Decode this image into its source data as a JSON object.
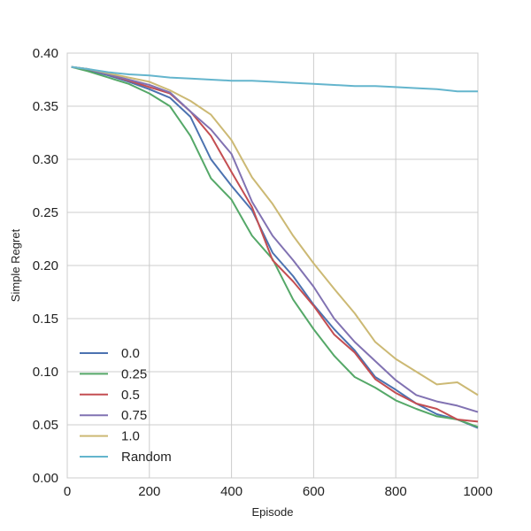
{
  "chart_data": {
    "type": "line",
    "title": "",
    "xlabel": "Episode",
    "ylabel": "Simple Regret",
    "xlim": [
      0,
      1000
    ],
    "ylim": [
      0,
      0.4
    ],
    "xticks": [
      0,
      200,
      400,
      600,
      800,
      1000
    ],
    "xtick_labels": [
      "0",
      "200",
      "400",
      "600",
      "800",
      "1000"
    ],
    "yticks": [
      0,
      0.05,
      0.1,
      0.15,
      0.2,
      0.25,
      0.3,
      0.35,
      0.4
    ],
    "ytick_labels": [
      "0.00",
      "0.05",
      "0.10",
      "0.15",
      "0.20",
      "0.25",
      "0.30",
      "0.35",
      "0.40"
    ],
    "grid": true,
    "legend_position": "lower-left",
    "x": [
      10,
      50,
      100,
      150,
      200,
      250,
      300,
      350,
      400,
      450,
      500,
      550,
      600,
      650,
      700,
      750,
      800,
      850,
      900,
      950,
      1000
    ],
    "series": [
      {
        "name": "0.0",
        "color": "#4C72B0",
        "values": [
          0.387,
          0.384,
          0.379,
          0.373,
          0.366,
          0.358,
          0.34,
          0.3,
          0.275,
          0.252,
          0.212,
          0.19,
          0.163,
          0.14,
          0.12,
          0.095,
          0.083,
          0.07,
          0.06,
          0.055,
          0.047
        ]
      },
      {
        "name": "0.25",
        "color": "#55A868",
        "values": [
          0.387,
          0.383,
          0.377,
          0.371,
          0.362,
          0.35,
          0.322,
          0.282,
          0.262,
          0.228,
          0.206,
          0.168,
          0.14,
          0.115,
          0.095,
          0.085,
          0.073,
          0.065,
          0.058,
          0.055,
          0.048
        ]
      },
      {
        "name": "0.5",
        "color": "#C44E52",
        "values": [
          0.387,
          0.385,
          0.38,
          0.374,
          0.368,
          0.362,
          0.345,
          0.322,
          0.288,
          0.255,
          0.205,
          0.185,
          0.162,
          0.135,
          0.118,
          0.093,
          0.08,
          0.07,
          0.065,
          0.055,
          0.053
        ]
      },
      {
        "name": "0.75",
        "color": "#8172B2",
        "values": [
          0.387,
          0.385,
          0.38,
          0.375,
          0.37,
          0.363,
          0.345,
          0.328,
          0.305,
          0.26,
          0.228,
          0.205,
          0.18,
          0.15,
          0.128,
          0.11,
          0.092,
          0.078,
          0.072,
          0.068,
          0.062
        ]
      },
      {
        "name": "1.0",
        "color": "#CCB974",
        "values": [
          0.387,
          0.385,
          0.381,
          0.377,
          0.373,
          0.365,
          0.355,
          0.342,
          0.318,
          0.283,
          0.258,
          0.228,
          0.202,
          0.178,
          0.155,
          0.128,
          0.112,
          0.1,
          0.088,
          0.09,
          0.078
        ]
      },
      {
        "name": "Random",
        "color": "#64B5CD",
        "values": [
          0.387,
          0.385,
          0.382,
          0.38,
          0.379,
          0.377,
          0.376,
          0.375,
          0.374,
          0.374,
          0.373,
          0.372,
          0.371,
          0.37,
          0.369,
          0.369,
          0.368,
          0.367,
          0.366,
          0.364,
          0.364
        ]
      }
    ]
  }
}
